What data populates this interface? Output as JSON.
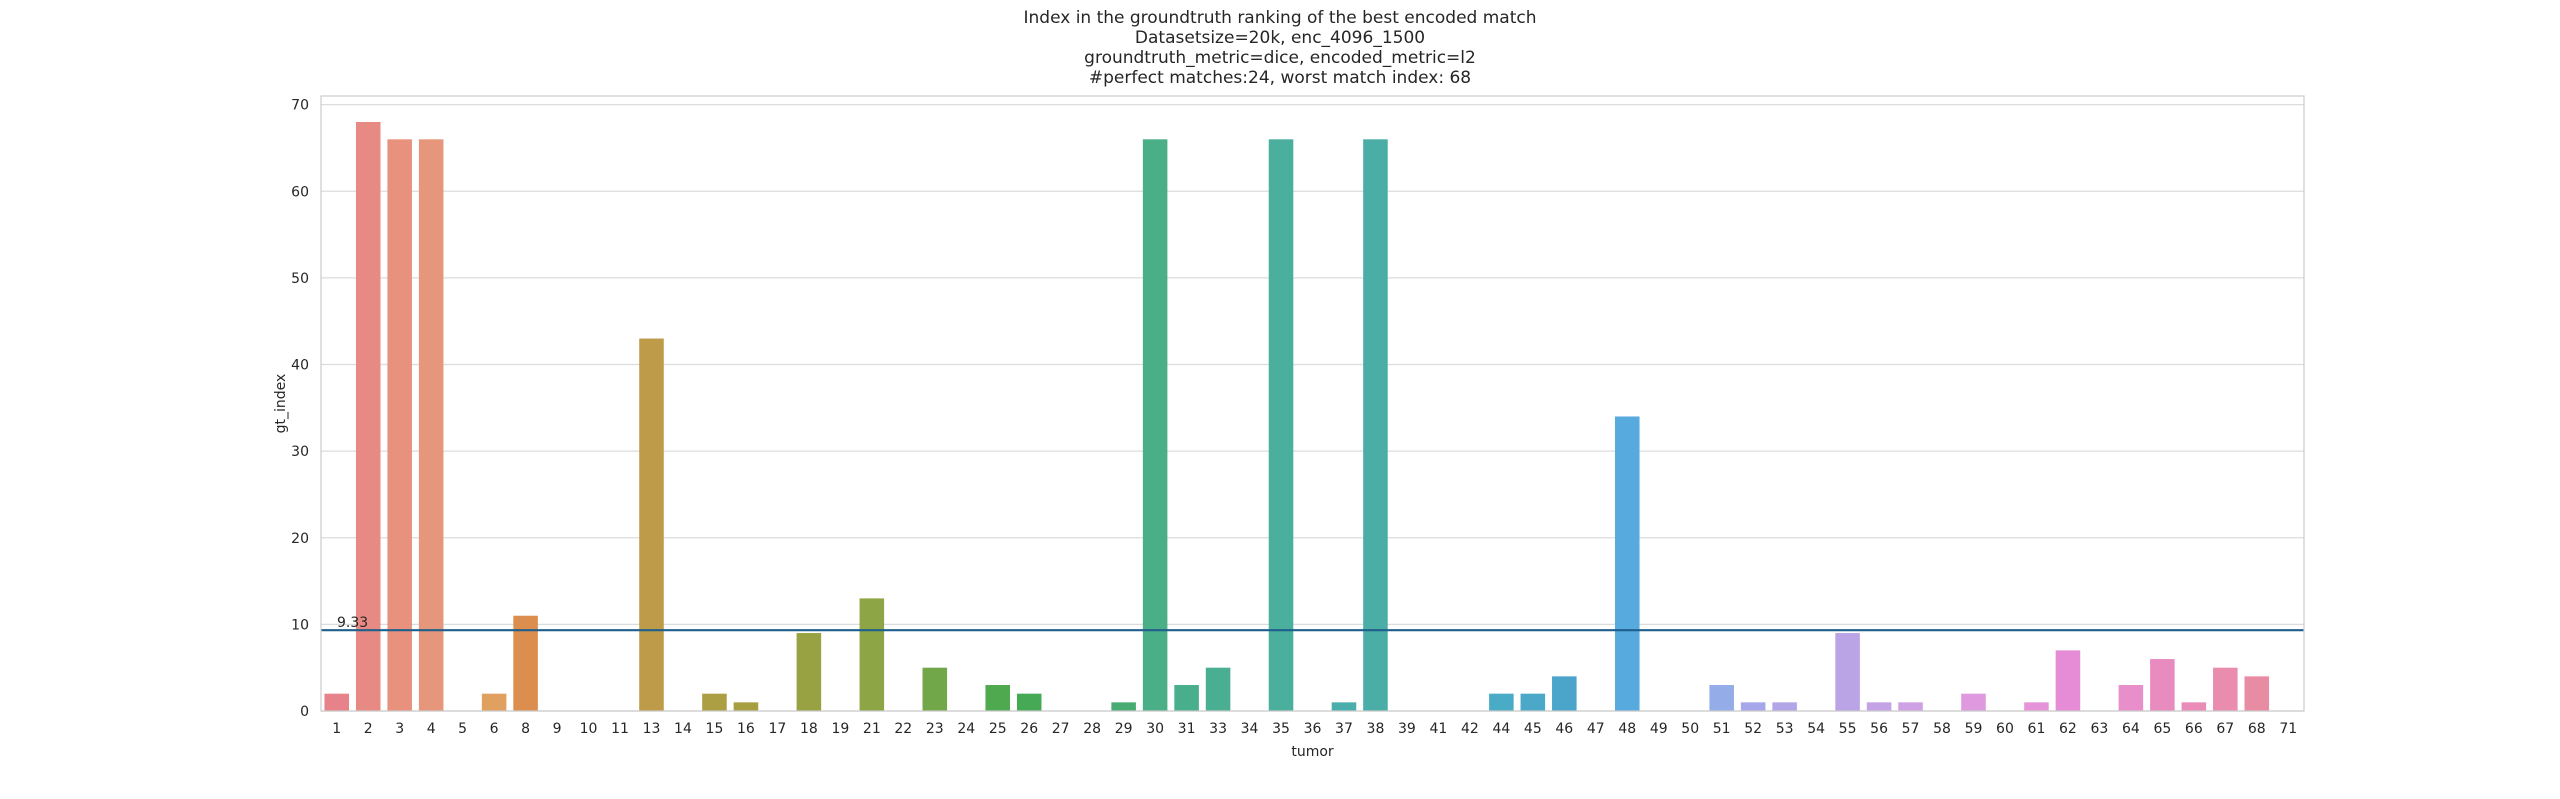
{
  "chart_data": {
    "type": "bar",
    "title_lines": [
      "Index in the groundtruth ranking of the best encoded match",
      "Datasetsize=20k, enc_4096_1500",
      "groundtruth_metric=dice, encoded_metric=l2",
      "#perfect matches:24, worst match index: 68"
    ],
    "xlabel": "tumor",
    "ylabel": "gt_index",
    "ylim": [
      0,
      71
    ],
    "yticks": [
      0,
      10,
      20,
      30,
      40,
      50,
      60,
      70
    ],
    "grid": "horizontal",
    "categories": [
      "1",
      "2",
      "3",
      "4",
      "5",
      "6",
      "8",
      "9",
      "10",
      "11",
      "13",
      "14",
      "15",
      "16",
      "17",
      "18",
      "19",
      "21",
      "22",
      "23",
      "24",
      "25",
      "26",
      "27",
      "28",
      "29",
      "30",
      "31",
      "33",
      "34",
      "35",
      "36",
      "37",
      "38",
      "39",
      "41",
      "42",
      "44",
      "45",
      "46",
      "47",
      "48",
      "49",
      "50",
      "51",
      "52",
      "53",
      "54",
      "55",
      "56",
      "57",
      "58",
      "59",
      "60",
      "61",
      "62",
      "63",
      "64",
      "65",
      "66",
      "67",
      "68",
      "71"
    ],
    "values": [
      2,
      68,
      66,
      66,
      0,
      2,
      11,
      0,
      0,
      0,
      43,
      0,
      2,
      1,
      0,
      9,
      0,
      13,
      0,
      5,
      0,
      3,
      2,
      0,
      0,
      1,
      66,
      3,
      5,
      0,
      66,
      0,
      1,
      66,
      0,
      0,
      0,
      2,
      2,
      4,
      0,
      34,
      0,
      0,
      3,
      1,
      1,
      0,
      9,
      1,
      1,
      0,
      2,
      0,
      1,
      7,
      0,
      3,
      6,
      1,
      5,
      4,
      0
    ],
    "colors": [
      "#e8828a",
      "#e88a84",
      "#e8927e",
      "#e6977b",
      "#e39d70",
      "#e0a060",
      "#db8e4e",
      "#d49a4f",
      "#cf9e4f",
      "#ca9f4e",
      "#bd9b48",
      "#b49d45",
      "#ac9e42",
      "#a69f40",
      "#a0a03f",
      "#98a242",
      "#93a444",
      "#8da545",
      "#84a646",
      "#72a749",
      "#5ea84b",
      "#4fa94f",
      "#45a955",
      "#43aa5f",
      "#44aa69",
      "#47ab73",
      "#4aae86",
      "#49ae8c",
      "#4aae93",
      "#4aaf99",
      "#4aaf9d",
      "#4aaf9f",
      "#4aaeaa",
      "#4aaea6",
      "#4aadb2",
      "#4aadb8",
      "#4aacbe",
      "#49abc5",
      "#4ba8c9",
      "#4ba5cb",
      "#4ea5d0",
      "#56aade",
      "#6dace2",
      "#80b0e7",
      "#94ade9",
      "#a6a6ea",
      "#b2a5e8",
      "#b7a4e7",
      "#baa4e6",
      "#c3a3e6",
      "#cda1e4",
      "#d7a0e2",
      "#de99df",
      "#e296dc",
      "#e694d9",
      "#e68cd6",
      "#e78ed1",
      "#e88ecb",
      "#e88cc0",
      "#e98cb8",
      "#e98cae",
      "#e88ca4",
      "#e68d98"
    ],
    "mean_line": {
      "value": 9.33,
      "label": "9.33",
      "color": "#1f5f8b"
    }
  }
}
